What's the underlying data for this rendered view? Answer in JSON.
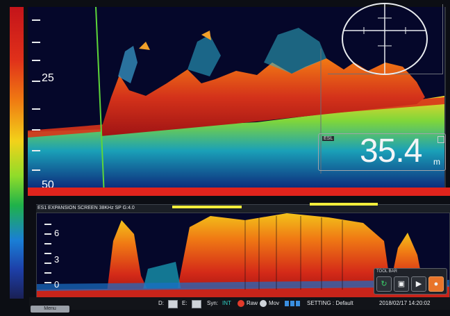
{
  "upper_echogram": {
    "depth_labels": [
      "25",
      "50"
    ]
  },
  "esl_readout": {
    "tag": "ESL",
    "value": "35.4",
    "unit": "m"
  },
  "expansion": {
    "title": "ES1 EXPANSION SCREEN   38KHz SP   G:4.0",
    "scale_labels": [
      "6",
      "3",
      "0"
    ]
  },
  "toolbox": {
    "title": "TOOL BAR"
  },
  "statusbar": {
    "menu_label": "Menu",
    "d_label": "D:",
    "e_label": "E:",
    "sync_label": "Syn:",
    "sync_value": "INT",
    "raw_label": "Raw",
    "mov_label": "Mov",
    "setting": "SETTING : Default",
    "datetime": "2018/02/17  14:20:02"
  },
  "colors": {
    "accent_red": "#e0241c",
    "marker_yellow": "#f2ee3c",
    "sync_cyan": "#30d3c8"
  },
  "icons": [
    "refresh-icon",
    "camera-icon",
    "video-camera-icon",
    "record-icon"
  ]
}
